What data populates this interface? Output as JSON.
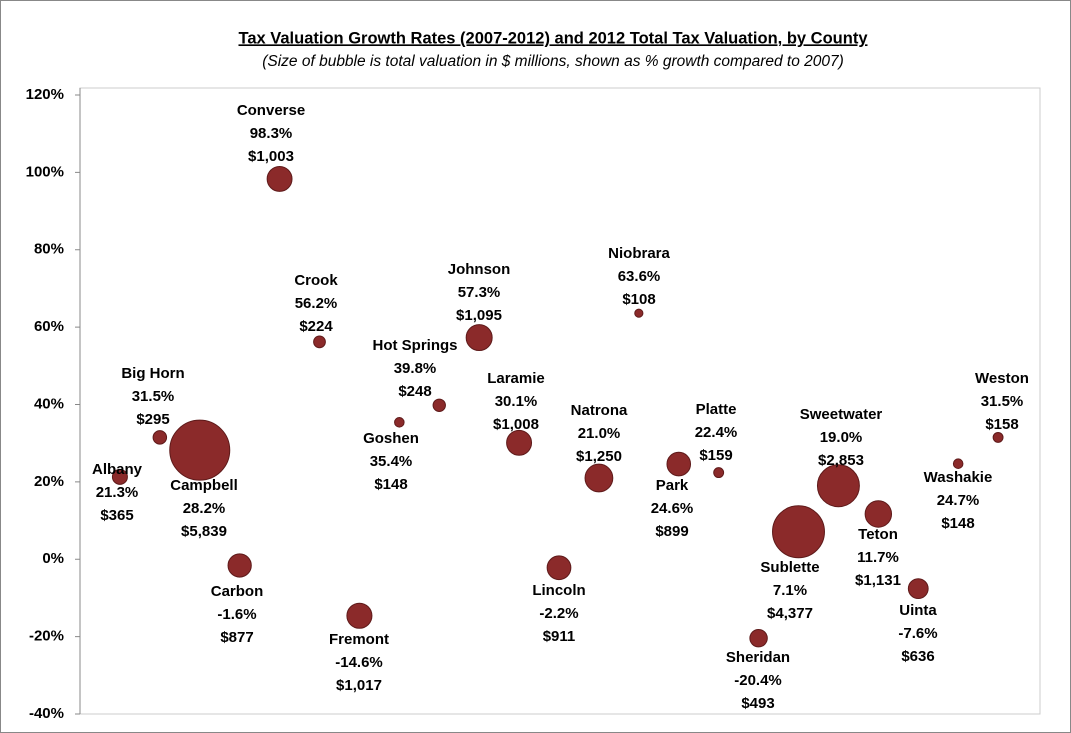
{
  "chart_data": {
    "type": "bubble",
    "title": "Tax Valuation Growth Rates (2007-2012) and 2012 Total Tax Valuation, by County",
    "subtitle": "(Size of bubble is total valuation in $ millions, shown as % growth compared to 2007)",
    "categories": [
      "Albany",
      "Big Horn",
      "Campbell",
      "Carbon",
      "Converse",
      "Crook",
      "Fremont",
      "Goshen",
      "Hot Springs",
      "Johnson",
      "Laramie",
      "Lincoln",
      "Natrona",
      "Niobrara",
      "Park",
      "Platte",
      "Sheridan",
      "Sublette",
      "Sweetwater",
      "Teton",
      "Uinta",
      "Washakie",
      "Weston"
    ],
    "values": [
      21.3,
      31.5,
      28.2,
      -1.6,
      98.3,
      56.2,
      -14.6,
      35.4,
      39.8,
      57.3,
      30.1,
      -2.2,
      21.0,
      63.6,
      24.6,
      22.4,
      -20.4,
      7.1,
      19.0,
      11.7,
      -7.6,
      24.7,
      31.5
    ],
    "value_labels": [
      "21.3%",
      "31.5%",
      "28.2%",
      "-1.6%",
      "98.3%",
      "56.2%",
      "-14.6%",
      "35.4%",
      "39.8%",
      "57.3%",
      "30.1%",
      "-2.2%",
      "21.0%",
      "63.6%",
      "24.6%",
      "22.4%",
      "-20.4%",
      "7.1%",
      "19.0%",
      "11.7%",
      "-7.6%",
      "24.7%",
      "31.5%"
    ],
    "sizes": [
      365,
      295,
      5839,
      877,
      1003,
      224,
      1017,
      148,
      248,
      1095,
      1008,
      911,
      1250,
      108,
      899,
      159,
      493,
      4377,
      2853,
      1131,
      636,
      148,
      158
    ],
    "size_labels": [
      "$365",
      "$295",
      "$5,839",
      "$877",
      "$1,003",
      "$224",
      "$1,017",
      "$148",
      "$248",
      "$1,095",
      "$1,008",
      "$911",
      "$1,250",
      "$108",
      "$899",
      "$159",
      "$493",
      "$4,377",
      "$2,853",
      "$1,131",
      "$636",
      "$148",
      "$158"
    ],
    "color": "#8b2a2a",
    "ylim": [
      -40,
      120
    ],
    "yticks": [
      {
        "value": -40,
        "label": "-40%"
      },
      {
        "value": -20,
        "label": "-20%"
      },
      {
        "value": 0,
        "label": "0%"
      },
      {
        "value": 20,
        "label": "20%"
      },
      {
        "value": 40,
        "label": "40%"
      },
      {
        "value": 60,
        "label": "60%"
      },
      {
        "value": 80,
        "label": "80%"
      },
      {
        "value": 100,
        "label": "100%"
      },
      {
        "value": 120,
        "label": "120%"
      }
    ]
  }
}
